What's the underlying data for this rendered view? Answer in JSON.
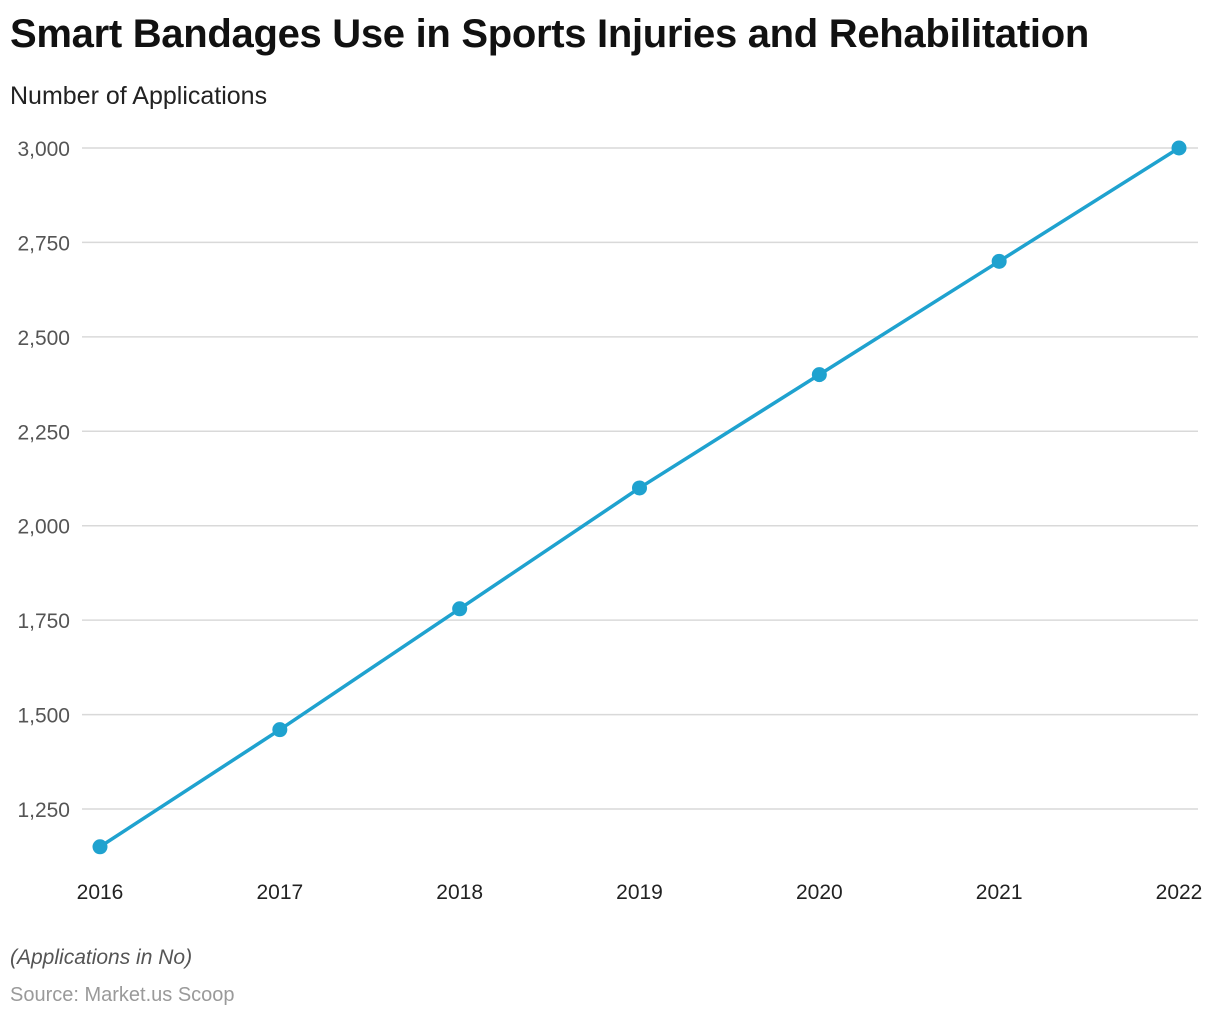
{
  "chart_data": {
    "type": "line",
    "title": "Smart Bandages Use in Sports Injuries and Rehabilitation",
    "subtitle": "Number of Applications",
    "xlabel": "",
    "ylabel": "Number of Applications",
    "categories": [
      "2016",
      "2017",
      "2018",
      "2019",
      "2020",
      "2021",
      "2022"
    ],
    "series": [
      {
        "name": "Number of Applications",
        "values": [
          1150,
          1460,
          1780,
          2100,
          2400,
          2700,
          3000
        ],
        "color": "#1fa2cf"
      }
    ],
    "ylim": [
      1150,
      3000
    ],
    "yticks": [
      1250,
      1500,
      1750,
      2000,
      2250,
      2500,
      2750,
      3000
    ],
    "ytick_labels": [
      "1,250",
      "1,500",
      "1,750",
      "2,000",
      "2,250",
      "2,500",
      "2,750",
      "3,000"
    ],
    "grid": true,
    "legend": "none"
  },
  "footer": {
    "note": "(Applications in No)",
    "source": "Source: Market.us Scoop"
  },
  "colors": {
    "line": "#1fa2cf",
    "grid": "#d9d9d9",
    "tick_text": "#555555"
  }
}
